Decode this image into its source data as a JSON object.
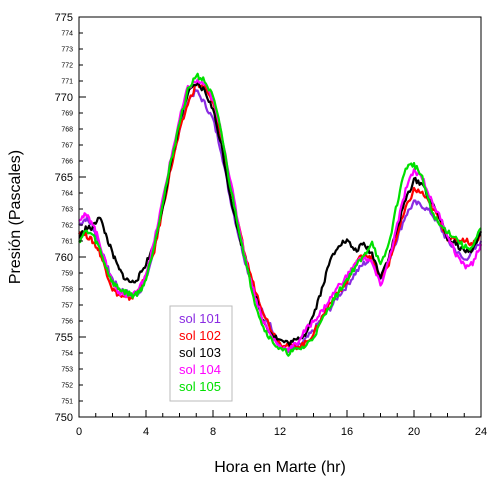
{
  "chart_data": {
    "type": "line",
    "title": "",
    "xlabel": "Hora en Marte (hr)",
    "ylabel": "Presión (Pascales)",
    "xlim": [
      0,
      24
    ],
    "ylim": [
      750,
      775
    ],
    "x_major_ticks": [
      "0",
      "4",
      "8",
      "12",
      "16",
      "20",
      "24"
    ],
    "y_major_ticks": [
      "750",
      "755",
      "760",
      "765",
      "770",
      "775"
    ],
    "y_minor_ticks": [
      "751",
      "752",
      "753",
      "754",
      "756",
      "757",
      "758",
      "759",
      "761",
      "762",
      "763",
      "764",
      "766",
      "767",
      "768",
      "769",
      "771",
      "772",
      "773",
      "774"
    ],
    "grid": false,
    "legend_position": "bottom-left",
    "series": [
      {
        "name": "sol 101",
        "color": "#8a2be2",
        "x": [
          0.0,
          0.4,
          0.8,
          1.2,
          1.6,
          2.0,
          2.4,
          2.8,
          3.2,
          3.6,
          4.0,
          4.5,
          5.0,
          5.5,
          6.0,
          6.5,
          7.0,
          7.5,
          8.0,
          8.5,
          9.0,
          9.5,
          10.0,
          10.5,
          11.0,
          11.5,
          12.0,
          12.5,
          13.0,
          13.5,
          14.0,
          14.5,
          15.0,
          15.5,
          16.0,
          16.5,
          17.0,
          17.5,
          18.0,
          18.5,
          19.0,
          19.5,
          20.0,
          20.5,
          21.0,
          21.5,
          22.0,
          22.5,
          23.0,
          23.5,
          24.0
        ],
        "y": [
          762.0,
          762.4,
          762.0,
          760.8,
          759.6,
          758.6,
          758.0,
          757.8,
          757.6,
          757.8,
          758.6,
          760.5,
          763.2,
          765.8,
          768.0,
          769.8,
          770.4,
          769.6,
          768.6,
          766.6,
          763.8,
          761.5,
          759.4,
          757.8,
          756.4,
          755.6,
          754.4,
          754.2,
          754.3,
          754.8,
          755.4,
          756.2,
          756.8,
          757.6,
          758.2,
          759.0,
          759.6,
          759.8,
          758.7,
          759.8,
          761.2,
          762.6,
          763.4,
          763.2,
          762.8,
          762.0,
          761.0,
          760.4,
          759.8,
          760.3,
          761.0
        ]
      },
      {
        "name": "sol 102",
        "color": "#ff0000",
        "x": [
          0.0,
          0.4,
          0.8,
          1.2,
          1.6,
          2.0,
          2.4,
          2.8,
          3.2,
          3.6,
          4.0,
          4.5,
          5.0,
          5.5,
          6.0,
          6.5,
          7.0,
          7.5,
          8.0,
          8.5,
          9.0,
          9.5,
          10.0,
          10.5,
          11.0,
          11.5,
          12.0,
          12.5,
          13.0,
          13.5,
          14.0,
          14.5,
          15.0,
          15.5,
          16.0,
          16.5,
          17.0,
          17.5,
          18.0,
          18.5,
          19.0,
          19.5,
          20.0,
          20.5,
          21.0,
          21.5,
          22.0,
          22.5,
          23.0,
          23.5,
          24.0
        ],
        "y": [
          761.6,
          761.4,
          761.0,
          760.4,
          759.2,
          758.0,
          757.6,
          757.4,
          757.5,
          758.0,
          758.8,
          760.4,
          763.0,
          765.6,
          767.8,
          769.6,
          770.8,
          770.6,
          769.6,
          767.4,
          764.8,
          762.0,
          759.8,
          758.0,
          756.6,
          755.4,
          754.6,
          754.5,
          754.4,
          754.6,
          755.2,
          756.2,
          757.2,
          757.8,
          758.4,
          759.6,
          760.2,
          760.0,
          758.6,
          759.6,
          761.4,
          763.0,
          764.2,
          764.0,
          763.2,
          762.4,
          761.2,
          761.0,
          761.1,
          760.8,
          761.4
        ]
      },
      {
        "name": "sol 103",
        "color": "#000000",
        "x": [
          0.0,
          0.4,
          0.8,
          1.2,
          1.6,
          2.0,
          2.4,
          2.8,
          3.2,
          3.6,
          4.0,
          4.5,
          5.0,
          5.5,
          6.0,
          6.5,
          7.0,
          7.5,
          8.0,
          8.5,
          9.0,
          9.5,
          10.0,
          10.5,
          11.0,
          11.5,
          12.0,
          12.5,
          13.0,
          13.5,
          14.0,
          14.5,
          15.0,
          15.5,
          16.0,
          16.5,
          17.0,
          17.5,
          18.0,
          18.5,
          19.0,
          19.5,
          20.0,
          20.5,
          21.0,
          21.5,
          22.0,
          22.5,
          23.0,
          23.5,
          24.0
        ],
        "y": [
          761.2,
          761.8,
          761.8,
          762.6,
          761.4,
          760.2,
          759.2,
          758.6,
          758.4,
          758.8,
          759.6,
          760.8,
          763.2,
          765.8,
          768.4,
          770.2,
          770.8,
          770.4,
          769.2,
          767.0,
          764.0,
          761.6,
          759.6,
          757.6,
          756.0,
          755.2,
          754.8,
          754.6,
          754.8,
          755.2,
          756.4,
          758.0,
          759.8,
          760.8,
          761.0,
          760.4,
          760.8,
          760.2,
          758.8,
          760.0,
          761.8,
          763.6,
          764.8,
          764.6,
          763.4,
          762.6,
          761.2,
          760.8,
          760.4,
          760.4,
          761.6
        ]
      },
      {
        "name": "sol 104",
        "color": "#ff00ff",
        "x": [
          0.0,
          0.4,
          0.8,
          1.2,
          1.6,
          2.0,
          2.4,
          2.8,
          3.2,
          3.6,
          4.0,
          4.5,
          5.0,
          5.5,
          6.0,
          6.5,
          7.0,
          7.5,
          8.0,
          8.5,
          9.0,
          9.5,
          10.0,
          10.5,
          11.0,
          11.5,
          12.0,
          12.5,
          13.0,
          13.5,
          14.0,
          14.5,
          15.0,
          15.5,
          16.0,
          16.5,
          17.0,
          17.5,
          18.0,
          18.5,
          19.0,
          19.5,
          20.0,
          20.5,
          21.0,
          21.5,
          22.0,
          22.5,
          23.0,
          23.5,
          24.0
        ],
        "y": [
          762.4,
          762.6,
          762.2,
          761.0,
          759.6,
          758.4,
          757.8,
          757.6,
          757.6,
          758.0,
          759.0,
          761.0,
          763.6,
          766.2,
          768.6,
          770.6,
          771.0,
          770.8,
          769.8,
          767.8,
          765.0,
          762.2,
          759.6,
          757.6,
          756.0,
          755.0,
          754.4,
          754.2,
          754.6,
          755.4,
          756.0,
          756.6,
          757.4,
          758.2,
          758.8,
          759.6,
          760.0,
          759.6,
          758.2,
          759.8,
          762.0,
          764.2,
          765.4,
          765.0,
          763.6,
          762.6,
          761.4,
          760.2,
          759.4,
          759.6,
          760.8
        ]
      },
      {
        "name": "sol 105",
        "color": "#00e000",
        "x": [
          0.0,
          0.4,
          0.8,
          1.2,
          1.6,
          2.0,
          2.4,
          2.8,
          3.2,
          3.6,
          4.0,
          4.5,
          5.0,
          5.5,
          6.0,
          6.5,
          7.0,
          7.5,
          8.0,
          8.5,
          9.0,
          9.5,
          10.0,
          10.5,
          11.0,
          11.5,
          12.0,
          12.5,
          13.0,
          13.5,
          14.0,
          14.5,
          15.0,
          15.5,
          16.0,
          16.5,
          17.0,
          17.5,
          18.0,
          18.5,
          19.0,
          19.5,
          20.0,
          20.5,
          21.0,
          21.5,
          22.0,
          22.5,
          23.0,
          23.5,
          24.0
        ],
        "y": [
          761.0,
          761.6,
          761.4,
          760.6,
          759.4,
          758.4,
          758.0,
          757.8,
          757.6,
          757.8,
          758.6,
          760.8,
          763.4,
          766.0,
          768.4,
          770.4,
          771.4,
          771.0,
          770.0,
          767.8,
          764.6,
          762.0,
          759.4,
          757.2,
          755.6,
          754.8,
          754.2,
          754.0,
          754.2,
          754.4,
          755.0,
          756.0,
          757.0,
          757.8,
          758.6,
          759.4,
          760.0,
          761.0,
          759.4,
          760.8,
          763.4,
          765.6,
          765.8,
          765.0,
          763.0,
          762.0,
          761.6,
          761.2,
          760.6,
          760.6,
          761.8
        ]
      }
    ]
  }
}
